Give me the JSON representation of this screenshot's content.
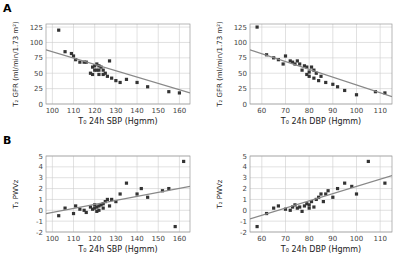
{
  "chart_data": [
    {
      "type": "scatter",
      "title": "A",
      "x_label": "T₀ 24h SBP (Hgmm)",
      "y_label": "T₂ GFR (ml/min/1.73 m²)",
      "xlim": [
        97,
        165
      ],
      "ylim": [
        0,
        130
      ],
      "xticks": [
        100,
        110,
        120,
        130,
        140,
        150,
        160
      ],
      "yticks": [
        0,
        25,
        50,
        75,
        100,
        125
      ],
      "grid": true,
      "series": [
        {
          "type": "scatter",
          "color": "#333333",
          "marker": "square",
          "x": [
            103,
            106,
            109,
            110,
            111,
            113,
            115,
            116,
            118,
            119,
            119,
            120,
            120,
            121,
            121,
            122,
            122,
            122,
            123,
            124,
            124,
            125,
            126,
            127,
            128,
            130,
            132,
            135,
            140,
            145,
            155,
            160
          ],
          "values": [
            120,
            85,
            82,
            78,
            72,
            68,
            68,
            68,
            50,
            60,
            48,
            62,
            55,
            65,
            55,
            62,
            55,
            48,
            60,
            55,
            48,
            50,
            45,
            70,
            42,
            38,
            35,
            40,
            35,
            28,
            20,
            18
          ]
        },
        {
          "type": "line",
          "color": "#888888",
          "line_style": "solid",
          "x": [
            97,
            165
          ],
          "values": [
            88,
            18
          ]
        }
      ]
    },
    {
      "type": "scatter",
      "x_label": "T₀ 24h DBP (Hgmm)",
      "y_label": "T₂ GFR (ml/min/1.73 m²)",
      "xlim": [
        55,
        115
      ],
      "ylim": [
        0,
        130
      ],
      "xticks": [
        60,
        70,
        80,
        90,
        100,
        110
      ],
      "yticks": [
        0,
        25,
        50,
        75,
        100,
        125
      ],
      "grid": true,
      "series": [
        {
          "type": "scatter",
          "color": "#333333",
          "marker": "square",
          "x": [
            58,
            62,
            65,
            67,
            69,
            70,
            72,
            73,
            74,
            75,
            76,
            77,
            78,
            79,
            79,
            80,
            80,
            81,
            82,
            82,
            83,
            84,
            85,
            87,
            90,
            92,
            95,
            100,
            108,
            112
          ],
          "values": [
            125,
            80,
            75,
            72,
            65,
            78,
            70,
            68,
            65,
            70,
            65,
            55,
            62,
            60,
            48,
            52,
            45,
            60,
            55,
            42,
            50,
            38,
            45,
            35,
            32,
            28,
            22,
            15,
            20,
            18
          ]
        },
        {
          "type": "line",
          "color": "#888888",
          "line_style": "solid",
          "x": [
            55,
            115
          ],
          "values": [
            88,
            12
          ]
        }
      ]
    },
    {
      "type": "scatter",
      "title": "B",
      "x_label": "T₀ 24h SBP (Hgmm)",
      "y_label": "T₂ PWVz",
      "xlim": [
        97,
        165
      ],
      "ylim": [
        -2,
        5
      ],
      "xticks": [
        100,
        110,
        120,
        130,
        140,
        150,
        160
      ],
      "yticks": [
        -2,
        -1,
        0,
        1,
        2,
        3,
        4,
        5
      ],
      "grid": true,
      "series": [
        {
          "type": "scatter",
          "color": "#333333",
          "marker": "square",
          "x": [
            103,
            106,
            110,
            111,
            113,
            115,
            116,
            118,
            119,
            120,
            120,
            121,
            121,
            122,
            122,
            123,
            124,
            124,
            125,
            126,
            127,
            128,
            130,
            132,
            135,
            140,
            142,
            145,
            152,
            155,
            158,
            162
          ],
          "values": [
            -0.5,
            0.2,
            -0.3,
            0.4,
            0.1,
            0.0,
            -0.2,
            0.3,
            0.1,
            0.5,
            0.2,
            -0.1,
            0.3,
            0.0,
            0.4,
            0.5,
            0.2,
            0.6,
            0.8,
            1.0,
            0.4,
            1.0,
            0.8,
            1.5,
            2.5,
            1.5,
            2.0,
            1.2,
            1.8,
            2.0,
            -1.5,
            4.5
          ]
        },
        {
          "type": "line",
          "color": "#888888",
          "line_style": "solid",
          "x": [
            97,
            165
          ],
          "values": [
            -0.3,
            2.2
          ]
        }
      ]
    },
    {
      "type": "scatter",
      "x_label": "T₀ 24h DBP (Hgmm)",
      "y_label": "T₂ PWVz",
      "xlim": [
        55,
        115
      ],
      "ylim": [
        -2,
        5
      ],
      "xticks": [
        60,
        70,
        80,
        90,
        100,
        110
      ],
      "yticks": [
        -2,
        -1,
        0,
        1,
        2,
        3,
        4,
        5
      ],
      "grid": true,
      "series": [
        {
          "type": "scatter",
          "color": "#333333",
          "marker": "square",
          "x": [
            58,
            62,
            65,
            67,
            70,
            72,
            73,
            74,
            75,
            76,
            77,
            78,
            79,
            80,
            80,
            81,
            82,
            83,
            84,
            85,
            86,
            87,
            88,
            90,
            92,
            95,
            98,
            100,
            105,
            112
          ],
          "values": [
            -1.5,
            -0.3,
            0.2,
            0.4,
            0.1,
            0.0,
            0.3,
            0.5,
            0.2,
            0.3,
            -0.1,
            0.4,
            0.6,
            0.5,
            0.2,
            0.8,
            0.3,
            1.0,
            1.2,
            1.5,
            0.8,
            1.5,
            1.8,
            1.2,
            2.0,
            2.5,
            2.2,
            1.5,
            4.5,
            2.5
          ]
        },
        {
          "type": "line",
          "color": "#888888",
          "line_style": "solid",
          "x": [
            55,
            115
          ],
          "values": [
            -0.8,
            3.2
          ]
        }
      ]
    }
  ]
}
